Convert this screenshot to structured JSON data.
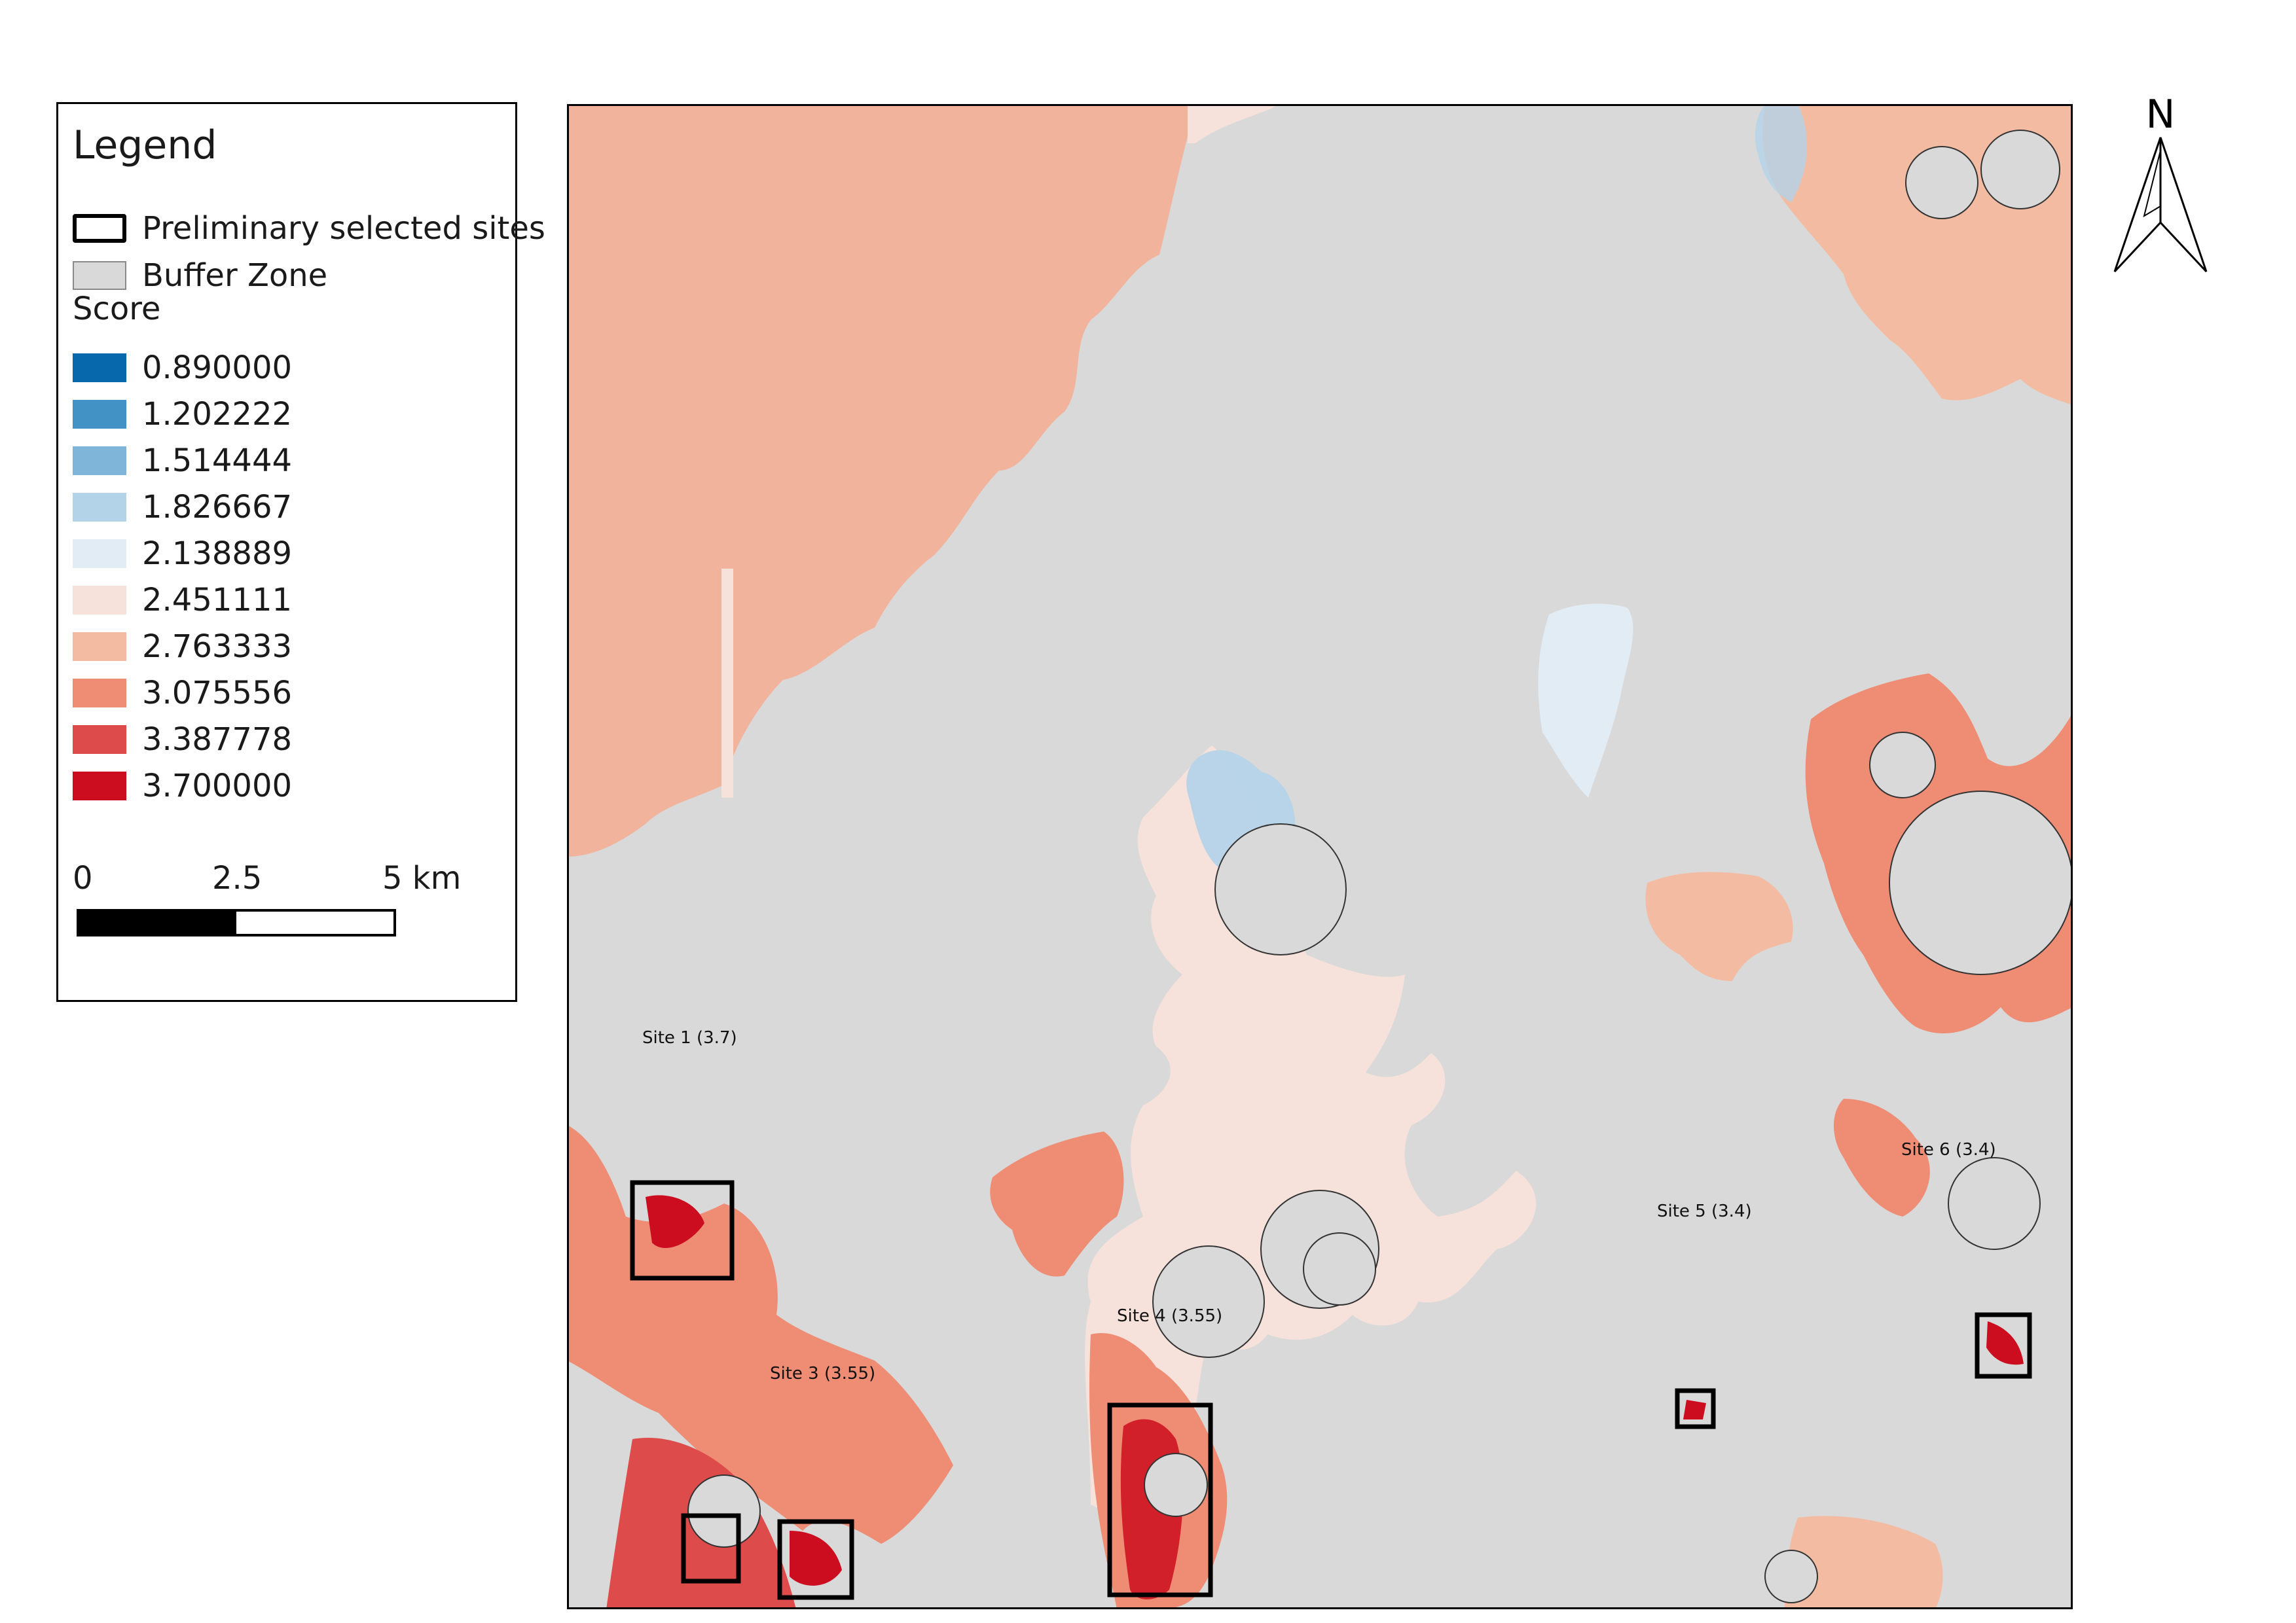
{
  "legend": {
    "title": "Legend",
    "items": [
      {
        "label": "Preliminary selected sites",
        "symbol": "outline-box"
      },
      {
        "label": "Buffer Zone",
        "symbol": "grey-fill",
        "color": "#d9d9d9"
      }
    ],
    "score_heading": "Score",
    "score_classes": [
      {
        "value": "0.890000",
        "color": "#0868ac"
      },
      {
        "value": "1.202222",
        "color": "#4292c6"
      },
      {
        "value": "1.514444",
        "color": "#7fb5d9"
      },
      {
        "value": "1.826667",
        "color": "#b3d3e9"
      },
      {
        "value": "2.138889",
        "color": "#e1ecf4"
      },
      {
        "value": "2.451111",
        "color": "#f6e2da"
      },
      {
        "value": "2.763333",
        "color": "#f4bba3"
      },
      {
        "value": "3.075556",
        "color": "#ee8c74"
      },
      {
        "value": "3.387778",
        "color": "#de4b4b"
      },
      {
        "value": "3.700000",
        "color": "#cc0d1f"
      }
    ],
    "scale": {
      "labels": [
        "0",
        "2.5",
        "5 km"
      ]
    }
  },
  "north_arrow": {
    "label": "N"
  },
  "sites": [
    {
      "label": "Site 1 (3.7)"
    },
    {
      "label": "Site 3 (3.55)"
    },
    {
      "label": "Site 4 (3.55)"
    },
    {
      "label": "Site 5 (3.4)"
    },
    {
      "label": "Site 6 (3.4)"
    }
  ],
  "colors": {
    "buffer": "#d9d9d9",
    "background_score": "#f2b39d",
    "frame": "#000000"
  }
}
